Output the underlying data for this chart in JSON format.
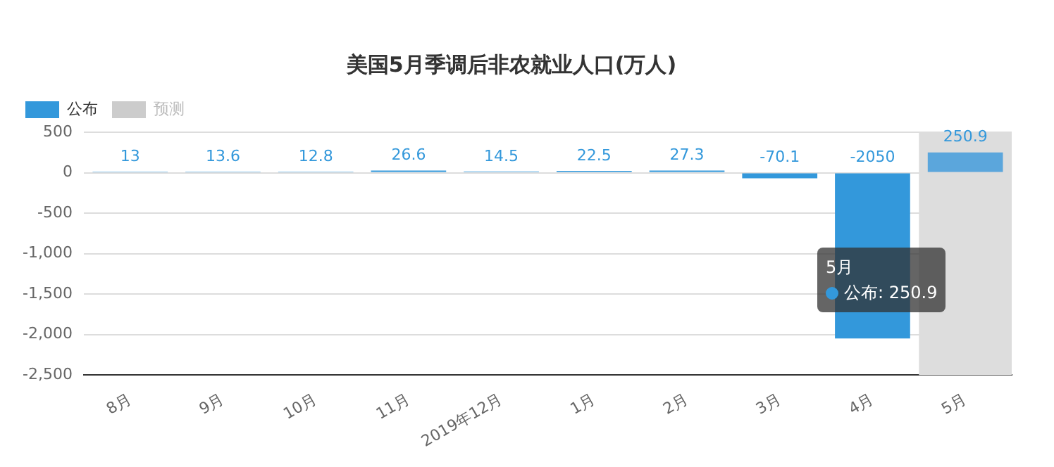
{
  "chart_data": {
    "type": "bar",
    "title": "美国5月季调后非农就业人口(万人)",
    "categories": [
      "8月",
      "9月",
      "10月",
      "11月",
      "2019年12月",
      "1月",
      "2月",
      "3月",
      "4月",
      "5月"
    ],
    "series": [
      {
        "name": "公布",
        "color": "#3398db",
        "colors": [
          "#3398db",
          "#3398db",
          "#3398db",
          "#3398db",
          "#3398db",
          "#3398db",
          "#3398db",
          "#3398db",
          "#3398db",
          "#5ba6dc"
        ],
        "values": [
          13,
          13.6,
          12.8,
          26.6,
          14.5,
          22.5,
          27.3,
          -70.1,
          -2050,
          250.9
        ]
      },
      {
        "name": "预测",
        "color": "#cccccc",
        "values": [
          null,
          null,
          null,
          null,
          null,
          null,
          null,
          null,
          null,
          null
        ]
      }
    ],
    "ylim": [
      -2500,
      500
    ],
    "yticks": [
      500,
      0,
      -500,
      {
        "value": -1000,
        "label": "-1,000"
      },
      {
        "value": -1500,
        "label": "-1,500"
      },
      {
        "value": -2000,
        "label": "-2,000"
      },
      {
        "value": -2500,
        "label": "-2,500"
      }
    ],
    "grid": "y",
    "legend": "top left",
    "data_labels": true,
    "bands": [
      {
        "axis": "x",
        "from": "5月",
        "to": "5月",
        "color": "#dddddd"
      }
    ],
    "annotations": [
      "5月",
      "公布: 250.9"
    ]
  }
}
